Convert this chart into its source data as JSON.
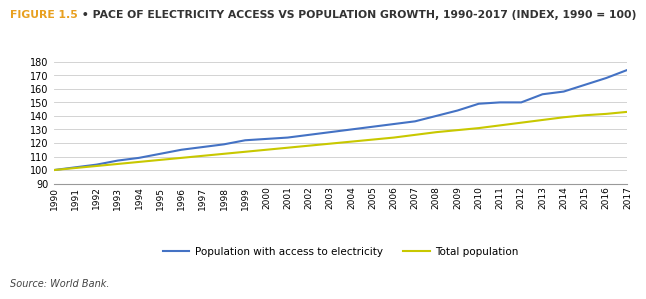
{
  "title_bold": "FIGURE 1.5",
  "title_bullet": " • ",
  "title_rest": "PACE OF ELECTRICITY ACCESS VS POPULATION GROWTH, 1990-2017 (INDEX, 1990 = 100)",
  "title_bold_color": "#E8A020",
  "title_rest_color": "#333333",
  "source_text": "Source: World Bank.",
  "years": [
    1990,
    1991,
    1992,
    1993,
    1994,
    1995,
    1996,
    1997,
    1998,
    1999,
    2000,
    2001,
    2002,
    2003,
    2004,
    2005,
    2006,
    2007,
    2008,
    2009,
    2010,
    2011,
    2012,
    2013,
    2014,
    2015,
    2016,
    2017
  ],
  "elec_access": [
    100,
    102,
    104,
    107,
    109,
    112,
    115,
    117,
    119,
    122,
    123,
    124,
    126,
    128,
    130,
    132,
    134,
    136,
    140,
    144,
    149,
    150,
    150,
    156,
    158,
    163,
    168,
    174
  ],
  "total_pop": [
    100,
    101.5,
    103,
    104.5,
    106,
    107.5,
    109,
    110.5,
    112,
    113.5,
    115,
    116.5,
    118,
    119.5,
    121,
    122.5,
    124,
    126,
    128,
    129.5,
    131,
    133,
    135,
    137,
    139,
    140.5,
    141.5,
    143
  ],
  "elec_color": "#4472C4",
  "pop_color": "#C8C800",
  "ylim": [
    90,
    180
  ],
  "yticks": [
    90,
    100,
    110,
    120,
    130,
    140,
    150,
    160,
    170,
    180
  ],
  "grid_color": "#CCCCCC",
  "legend_elec": "Population with access to electricity",
  "legend_pop": "Total population",
  "bg_color": "#FFFFFF",
  "line_width": 1.5
}
